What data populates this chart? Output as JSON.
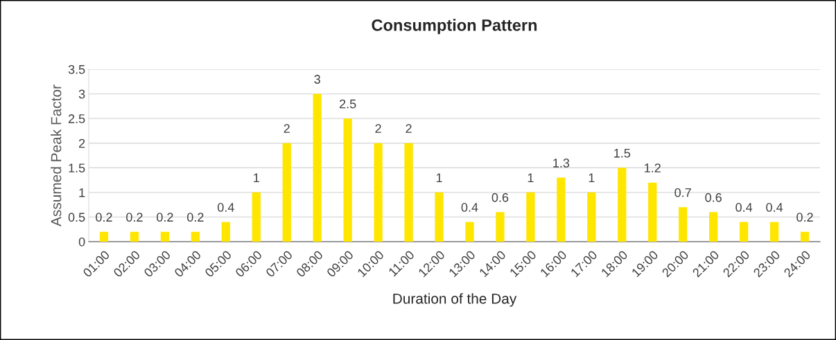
{
  "chart_data": {
    "type": "bar",
    "title": "Consumption Pattern",
    "xlabel": "Duration of the Day",
    "ylabel": "Assumed Peak Factor",
    "categories": [
      "01:00",
      "02:00",
      "03:00",
      "04:00",
      "05:00",
      "06:00",
      "07:00",
      "08:00",
      "09:00",
      "10:00",
      "11:00",
      "12:00",
      "13:00",
      "14:00",
      "15:00",
      "16:00",
      "17:00",
      "18:00",
      "19:00",
      "20:00",
      "21:00",
      "22:00",
      "23:00",
      "24:00"
    ],
    "values": [
      0.2,
      0.2,
      0.2,
      0.2,
      0.4,
      1,
      2,
      3,
      2.5,
      2,
      2,
      1,
      0.4,
      0.6,
      1,
      1.3,
      1,
      1.5,
      1.2,
      0.7,
      0.6,
      0.4,
      0.4,
      0.2
    ],
    "color": "#ffe600",
    "ylim": [
      0,
      3.5
    ],
    "yticks": [
      0,
      0.5,
      1,
      1.5,
      2,
      2.5,
      3,
      3.5
    ],
    "grid": "y",
    "data_labels": true
  }
}
